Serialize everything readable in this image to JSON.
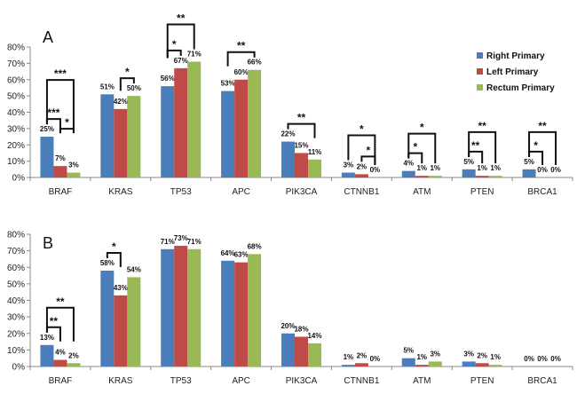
{
  "colors": {
    "Right Primary": "#4a7ebb",
    "Left Primary": "#be4b48",
    "Rectum Primary": "#98b954"
  },
  "chart_data": [
    {
      "type": "bar",
      "panel_label": "A",
      "categories": [
        "BRAF",
        "KRAS",
        "TP53",
        "APC",
        "PIK3CA",
        "CTNNB1",
        "ATM",
        "PTEN",
        "BRCA1"
      ],
      "series": [
        {
          "name": "Right Primary",
          "values": [
            25,
            51,
            56,
            53,
            22,
            3,
            4,
            5,
            5
          ],
          "labels": [
            "25%",
            "51%",
            "56%",
            "53%",
            "22%",
            "3%",
            "4%",
            "5%",
            "5%"
          ]
        },
        {
          "name": "Left Primary",
          "values": [
            7,
            42,
            67,
            60,
            15,
            2,
            1,
            1,
            0
          ],
          "labels": [
            "7%",
            "42%",
            "67%",
            "60%",
            "15%",
            "2%",
            "1%",
            "1%",
            "0%"
          ]
        },
        {
          "name": "Rectum Primary",
          "values": [
            3,
            50,
            71,
            66,
            11,
            0,
            1,
            1,
            0
          ],
          "labels": [
            "3%",
            "50%",
            "71%",
            "66%",
            "11%",
            "0%",
            "1%",
            "1%",
            "0%"
          ]
        }
      ],
      "yticks": [
        "0%",
        "10%",
        "20%",
        "30%",
        "40%",
        "50%",
        "60%",
        "70%",
        "80%"
      ],
      "ylim": [
        0,
        80
      ],
      "legend": {
        "position": "right",
        "entries": [
          "Right Primary",
          "Left Primary",
          "Rectum Primary"
        ]
      },
      "significance": [
        {
          "category": "BRAF",
          "from": 0,
          "to": 1,
          "label": "***"
        },
        {
          "category": "BRAF",
          "from": 1,
          "to": 2,
          "label": "*"
        },
        {
          "category": "BRAF",
          "from": 0,
          "to": 2,
          "label": "***"
        },
        {
          "category": "KRAS",
          "from": 1,
          "to": 2,
          "label": "*"
        },
        {
          "category": "TP53",
          "from": 0,
          "to": 1,
          "label": "*"
        },
        {
          "category": "TP53",
          "from": 0,
          "to": 2,
          "label": "**"
        },
        {
          "category": "APC",
          "from": 0,
          "to": 2,
          "label": "**"
        },
        {
          "category": "PIK3CA",
          "from": 0,
          "to": 2,
          "label": "**"
        },
        {
          "category": "CTNNB1",
          "from": 1,
          "to": 2,
          "label": "*"
        },
        {
          "category": "CTNNB1",
          "from": 0,
          "to": 2,
          "label": "*"
        },
        {
          "category": "ATM",
          "from": 0,
          "to": 1,
          "label": "*"
        },
        {
          "category": "ATM",
          "from": 0,
          "to": 2,
          "label": "*"
        },
        {
          "category": "PTEN",
          "from": 0,
          "to": 1,
          "label": "**"
        },
        {
          "category": "PTEN",
          "from": 0,
          "to": 2,
          "label": "**"
        },
        {
          "category": "BRCA1",
          "from": 0,
          "to": 1,
          "label": "*"
        },
        {
          "category": "BRCA1",
          "from": 0,
          "to": 2,
          "label": "**"
        }
      ]
    },
    {
      "type": "bar",
      "panel_label": "B",
      "categories": [
        "BRAF",
        "KRAS",
        "TP53",
        "APC",
        "PIK3CA",
        "CTNNB1",
        "ATM",
        "PTEN",
        "BRCA1"
      ],
      "series": [
        {
          "name": "Right Primary",
          "values": [
            13,
            58,
            71,
            64,
            20,
            1,
            5,
            3,
            0
          ],
          "labels": [
            "13%",
            "58%",
            "71%",
            "64%",
            "20%",
            "1%",
            "5%",
            "3%",
            "0%"
          ]
        },
        {
          "name": "Left Primary",
          "values": [
            4,
            43,
            73,
            63,
            18,
            2,
            1,
            2,
            0
          ],
          "labels": [
            "4%",
            "43%",
            "73%",
            "63%",
            "18%",
            "2%",
            "1%",
            "2%",
            "0%"
          ]
        },
        {
          "name": "Rectum Primary",
          "values": [
            2,
            54,
            71,
            68,
            14,
            0,
            3,
            1,
            0
          ],
          "labels": [
            "2%",
            "54%",
            "71%",
            "68%",
            "14%",
            "0%",
            "3%",
            "1%",
            "0%"
          ]
        }
      ],
      "yticks": [
        "0%",
        "10%",
        "20%",
        "30%",
        "40%",
        "50%",
        "60%",
        "70%",
        "80%"
      ],
      "ylim": [
        0,
        80
      ],
      "significance": [
        {
          "category": "BRAF",
          "from": 0,
          "to": 1,
          "label": "**"
        },
        {
          "category": "BRAF",
          "from": 0,
          "to": 2,
          "label": "**"
        },
        {
          "category": "KRAS",
          "from": 0,
          "to": 1,
          "label": "*"
        }
      ]
    }
  ]
}
